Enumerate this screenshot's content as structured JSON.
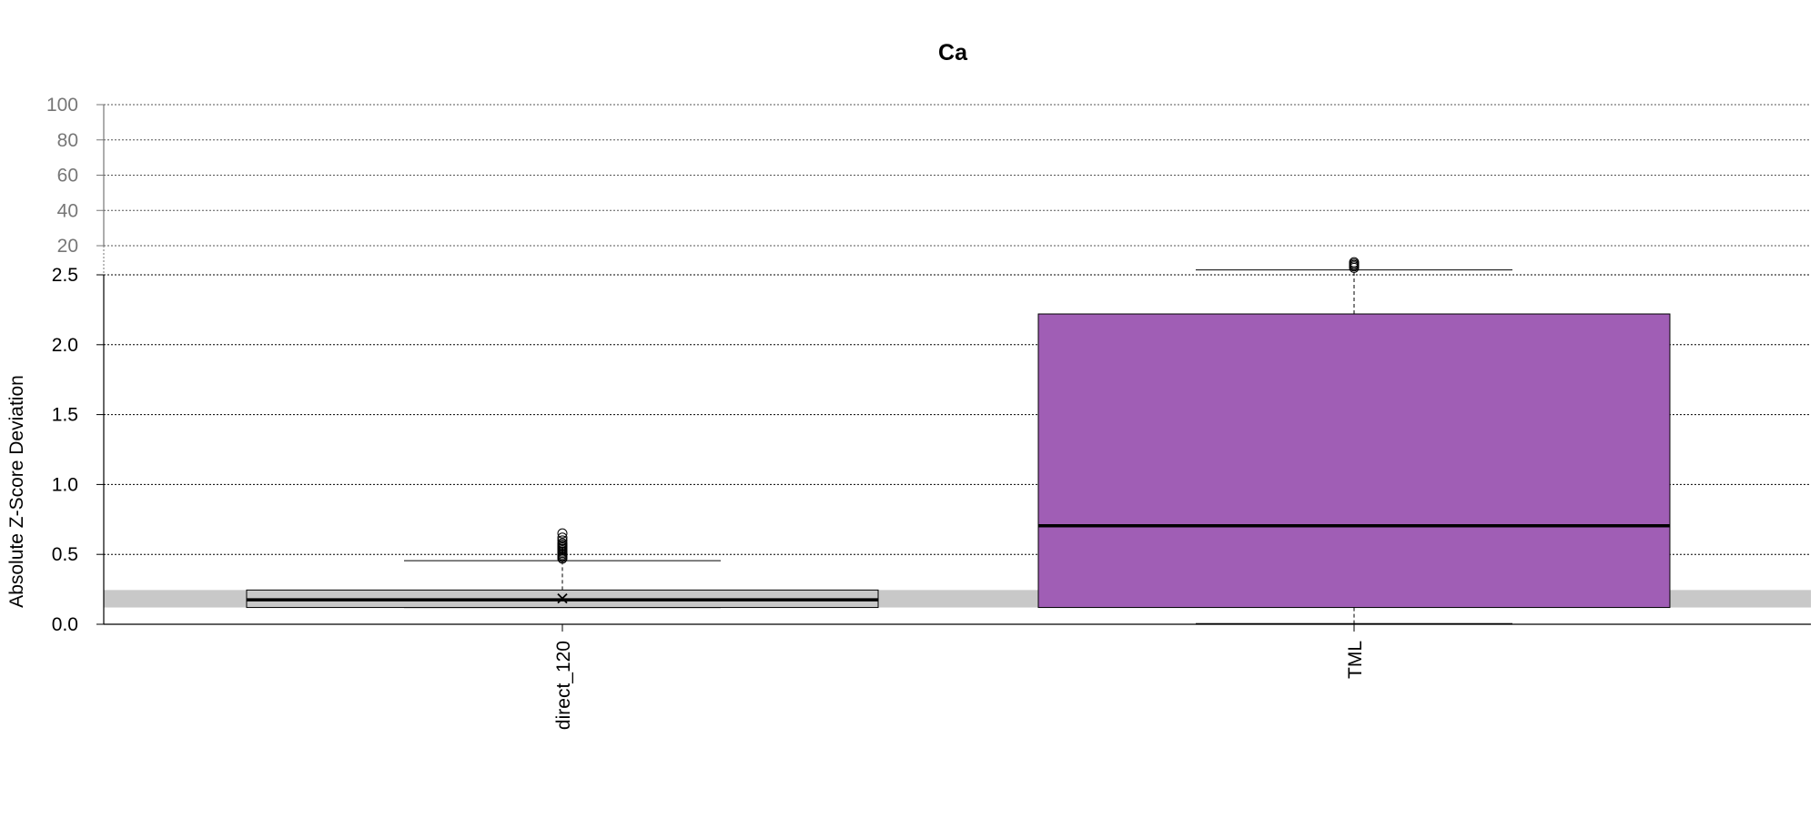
{
  "chart_data": {
    "type": "box",
    "title": "Ca",
    "xlabel": "",
    "ylabel": "Absolute Z-Score Deviation",
    "y_axis": {
      "broken": true,
      "lower_range": [
        0,
        2.5
      ],
      "lower_ticks": [
        "0.0",
        "0.5",
        "1.0",
        "1.5",
        "2.0",
        "2.5"
      ],
      "upper_range": [
        20,
        100
      ],
      "upper_ticks": [
        "20",
        "40",
        "60",
        "80",
        "100"
      ]
    },
    "grid": true,
    "reference_band": {
      "ymin": 0.12,
      "ymax": 0.245,
      "color": "#c8c8c8"
    },
    "categories": [
      "direct_120",
      "TML"
    ],
    "boxes": [
      {
        "name": "direct_120",
        "color": "#c8c8c8",
        "whisker_low": 0.12,
        "q1": 0.12,
        "median": 0.175,
        "q3": 0.245,
        "whisker_high": 0.455,
        "mean": 0.185,
        "outliers": [
          0.47,
          0.48,
          0.49,
          0.5,
          0.51,
          0.52,
          0.53,
          0.54,
          0.55,
          0.56,
          0.57,
          0.58,
          0.6,
          0.62,
          0.65
        ]
      },
      {
        "name": "TML",
        "color": "#a05eb5",
        "whisker_low": 0.005,
        "q1": 0.12,
        "median": 0.705,
        "q3": 2.22,
        "whisker_high": 2.535,
        "outliers": [
          2.55,
          2.56,
          2.57,
          2.58,
          2.59
        ]
      }
    ]
  }
}
